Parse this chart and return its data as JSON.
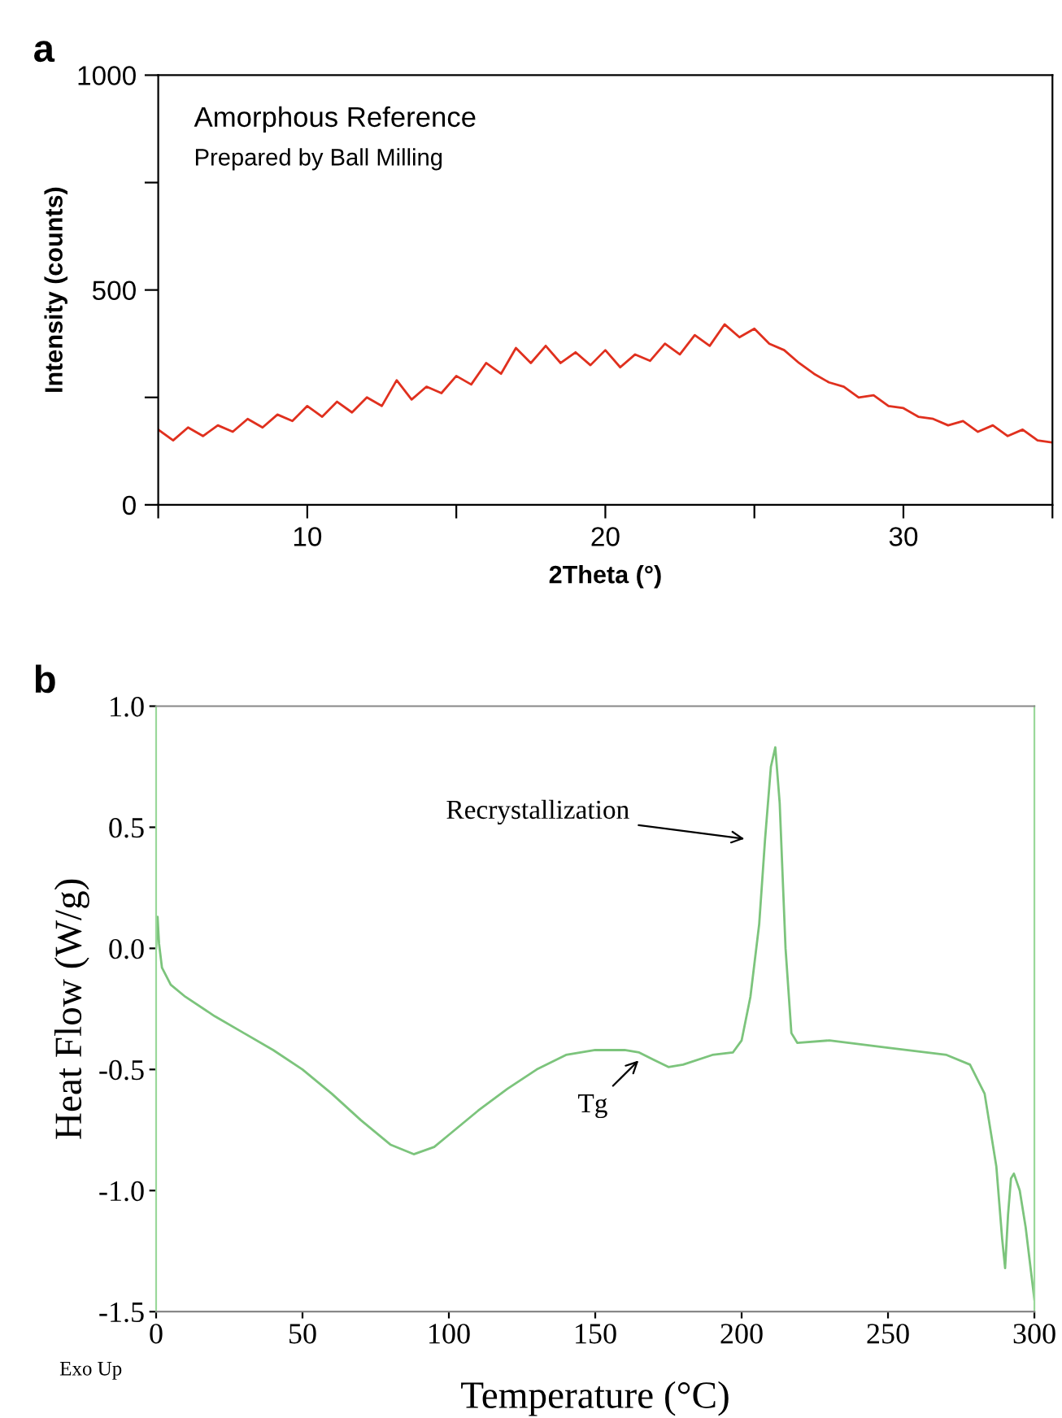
{
  "chart_data": [
    {
      "type": "line",
      "title": "a",
      "xlabel": "2Theta (°)",
      "ylabel": "Intensity (counts)",
      "annotations": [
        "Amorphous Reference",
        "Prepared by Ball Milling"
      ],
      "series": [
        {
          "color": "#e0301e",
          "x": [
            5,
            5.5,
            6,
            6.5,
            7,
            7.5,
            8,
            8.5,
            9,
            9.5,
            10,
            10.5,
            11,
            11.5,
            12,
            12.5,
            13,
            13.5,
            14,
            14.5,
            15,
            15.5,
            16,
            16.5,
            17,
            17.5,
            18,
            18.5,
            19,
            19.5,
            20,
            20.5,
            21,
            21.5,
            22,
            22.5,
            23,
            23.5,
            24,
            24.5,
            25,
            25.5,
            26,
            26.5,
            27,
            27.5,
            28,
            28.5,
            29,
            29.5,
            30,
            30.5,
            31,
            31.5,
            32,
            32.5,
            33,
            33.5,
            34,
            34.5,
            35
          ],
          "values": [
            175,
            150,
            180,
            160,
            185,
            170,
            200,
            180,
            210,
            195,
            230,
            205,
            240,
            215,
            250,
            230,
            290,
            245,
            275,
            260,
            300,
            280,
            330,
            305,
            365,
            330,
            370,
            330,
            355,
            325,
            360,
            320,
            350,
            335,
            375,
            350,
            395,
            370,
            420,
            390,
            410,
            375,
            360,
            330,
            305,
            285,
            275,
            250,
            255,
            230,
            225,
            205,
            200,
            185,
            195,
            170,
            185,
            160,
            175,
            150,
            145
          ]
        }
      ],
      "xlim": [
        5,
        35
      ],
      "ylim": [
        0,
        1000
      ],
      "xticks": [
        {
          "value": 5,
          "label": null
        },
        10,
        {
          "value": 15,
          "label": null
        },
        20,
        {
          "value": 25,
          "label": null
        },
        30,
        {
          "value": 35,
          "label": null
        }
      ],
      "yticks": [
        0,
        {
          "value": 250,
          "label": null
        },
        500,
        {
          "value": 750,
          "label": null
        },
        1000
      ],
      "grid": false,
      "legend": false,
      "marker": "none",
      "line_style": "solid"
    },
    {
      "type": "line",
      "title": "b",
      "xlabel": "Temperature (°C)",
      "ylabel": "Heat Flow (W/g)",
      "annotations": [
        "Recrystallization",
        "Tg",
        "Exo Up"
      ],
      "series": [
        {
          "color": "#7cc47c",
          "x": [
            0,
            0.5,
            1,
            2,
            5,
            10,
            20,
            30,
            40,
            50,
            60,
            70,
            80,
            88,
            95,
            100,
            110,
            120,
            130,
            140,
            150,
            160,
            165,
            170,
            175,
            180,
            190,
            197,
            200,
            203,
            206,
            208,
            210,
            211.5,
            213,
            215,
            217,
            219,
            230,
            250,
            270,
            278,
            283,
            287,
            289,
            290,
            291,
            292,
            293,
            295,
            297,
            299,
            300
          ],
          "values": [
            0.0,
            0.13,
            0.02,
            -0.08,
            -0.15,
            -0.2,
            -0.28,
            -0.35,
            -0.42,
            -0.5,
            -0.6,
            -0.71,
            -0.81,
            -0.85,
            -0.82,
            -0.77,
            -0.67,
            -0.58,
            -0.5,
            -0.44,
            -0.42,
            -0.42,
            -0.43,
            -0.46,
            -0.49,
            -0.48,
            -0.44,
            -0.43,
            -0.38,
            -0.2,
            0.1,
            0.45,
            0.75,
            0.83,
            0.6,
            0.0,
            -0.35,
            -0.39,
            -0.38,
            -0.41,
            -0.44,
            -0.48,
            -0.6,
            -0.9,
            -1.2,
            -1.32,
            -1.1,
            -0.95,
            -0.93,
            -1.0,
            -1.15,
            -1.35,
            -1.45
          ]
        }
      ],
      "xlim": [
        0,
        300
      ],
      "ylim": [
        -1.5,
        1.0
      ],
      "xticks": [
        0,
        50,
        100,
        150,
        200,
        250,
        300
      ],
      "yticks": [
        {
          "value": -1.5,
          "label": "-1.5"
        },
        {
          "value": -1.0,
          "label": "-1.0"
        },
        {
          "value": -0.5,
          "label": "-0.5"
        },
        {
          "value": 0.0,
          "label": "0.0"
        },
        {
          "value": 0.5,
          "label": "0.5"
        },
        {
          "value": 1.0,
          "label": "1.0"
        }
      ],
      "grid": false,
      "legend": false,
      "marker": "none",
      "line_style": "solid"
    }
  ]
}
